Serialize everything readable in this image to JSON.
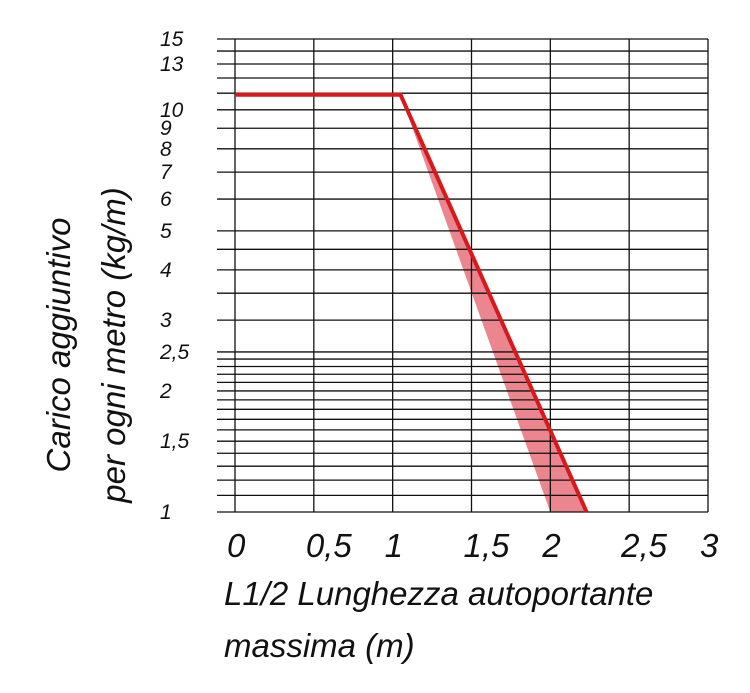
{
  "chart_data": {
    "type": "line",
    "xlabel_lines": [
      "L1/2 Lunghezza autoportante",
      "massima (m)"
    ],
    "ylabel_lines": [
      "Carico aggiuntivo",
      "per ogni metro (kg/m)"
    ],
    "xlim": [
      0,
      3
    ],
    "ylim": [
      1,
      15
    ],
    "y_scale": "log",
    "grid": true,
    "x_ticks": [
      {
        "value": 0,
        "label": "0"
      },
      {
        "value": 0.5,
        "label": "0,5"
      },
      {
        "value": 1,
        "label": "1"
      },
      {
        "value": 1.5,
        "label": "1,5"
      },
      {
        "value": 2,
        "label": "2"
      },
      {
        "value": 2.5,
        "label": "2,5"
      },
      {
        "value": 3,
        "label": "3"
      }
    ],
    "y_ticks": [
      {
        "value": 1,
        "label": "1"
      },
      {
        "value": 1.5,
        "label": "1,5"
      },
      {
        "value": 2,
        "label": "2"
      },
      {
        "value": 2.5,
        "label": "2,5"
      },
      {
        "value": 3,
        "label": "3"
      },
      {
        "value": 4,
        "label": "4"
      },
      {
        "value": 5,
        "label": "5"
      },
      {
        "value": 6,
        "label": "6"
      },
      {
        "value": 7,
        "label": "7"
      },
      {
        "value": 8,
        "label": "8"
      },
      {
        "value": 9,
        "label": "9"
      },
      {
        "value": 10,
        "label": "10"
      },
      {
        "value": 13,
        "label": "13"
      },
      {
        "value": 15,
        "label": "15"
      }
    ],
    "minor_gridlines_y": [
      1.1,
      1.2,
      1.3,
      1.4,
      1.6,
      1.7,
      1.8,
      1.9,
      2.1,
      2.2,
      2.3,
      2.4,
      3.5,
      4.5,
      11,
      12,
      14
    ],
    "series": [
      {
        "values": [
          {
            "x": 0,
            "y": 10.9
          },
          {
            "x": 1.05,
            "y": 10.9
          },
          {
            "x": 2.23,
            "y": 1.0
          }
        ]
      }
    ],
    "band": [
      {
        "x": 1.05,
        "y": 10.9
      },
      {
        "x": 2.23,
        "y": 1.0
      },
      {
        "x": 2.0,
        "y": 1.0
      }
    ],
    "colors": {
      "line": "#d7191c",
      "band": "#e8707a",
      "grid": "#111111"
    }
  }
}
